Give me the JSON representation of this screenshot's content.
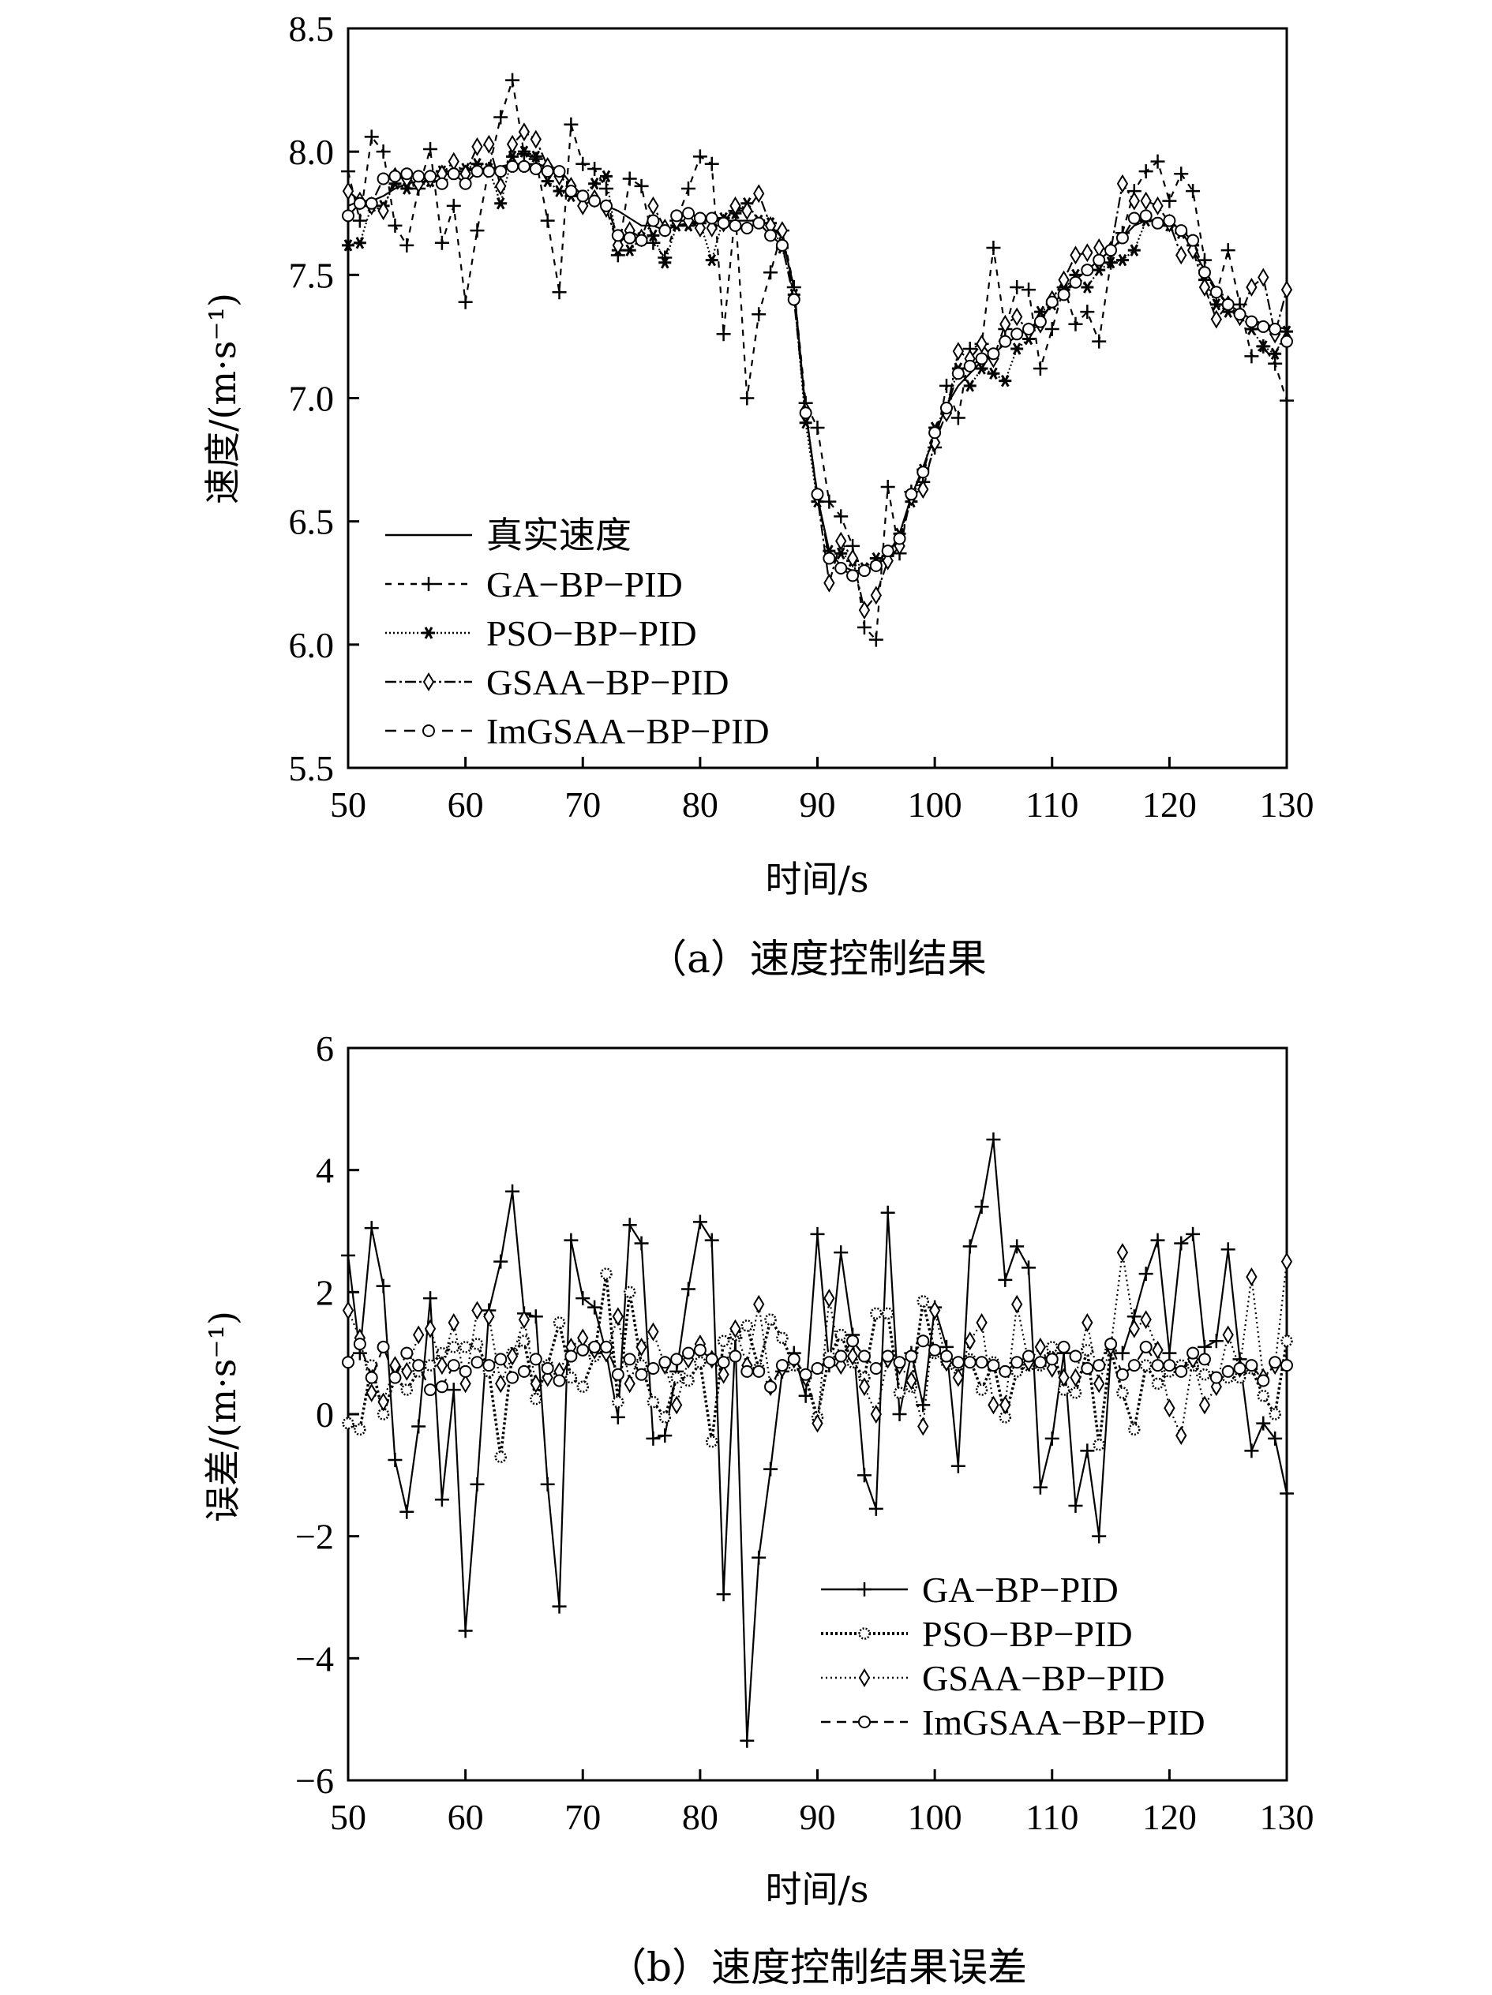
{
  "chart_data": [
    {
      "type": "line",
      "caption": "（a）速度控制结果",
      "xlabel": "时间/s",
      "ylabel": "速度/(m·s⁻¹)",
      "xlim": [
        50,
        130
      ],
      "ylim": [
        5.5,
        8.5
      ],
      "xticks": [
        "50",
        "60",
        "70",
        "80",
        "90",
        "100",
        "110",
        "120",
        "130"
      ],
      "yticks": [
        "5.5",
        "6.0",
        "6.5",
        "7.0",
        "7.5",
        "8.0",
        "8.5"
      ],
      "legend_position": "lower-left",
      "x": [
        50,
        51,
        52,
        53,
        54,
        55,
        56,
        57,
        58,
        59,
        60,
        61,
        62,
        63,
        64,
        65,
        66,
        67,
        68,
        69,
        70,
        71,
        72,
        73,
        74,
        75,
        76,
        77,
        78,
        79,
        80,
        81,
        82,
        83,
        84,
        85,
        86,
        87,
        88,
        89,
        90,
        91,
        92,
        93,
        94,
        95,
        96,
        97,
        98,
        99,
        100,
        101,
        102,
        103,
        104,
        105,
        106,
        107,
        108,
        109,
        110,
        111,
        112,
        113,
        114,
        115,
        116,
        117,
        118,
        119,
        120,
        121,
        122,
        123,
        124,
        125,
        126,
        127,
        128,
        129,
        130
      ],
      "series": [
        {
          "name": "真实速度",
          "marker": "none",
          "dash": "solid",
          "values": [
            7.78,
            7.8,
            7.8,
            7.82,
            7.85,
            7.87,
            7.88,
            7.9,
            7.9,
            7.92,
            7.92,
            7.93,
            7.93,
            7.94,
            7.95,
            7.95,
            7.95,
            7.94,
            7.93,
            7.87,
            7.82,
            7.8,
            7.78,
            7.76,
            7.73,
            7.7,
            7.7,
            7.68,
            7.7,
            7.71,
            7.72,
            7.72,
            7.72,
            7.72,
            7.72,
            7.72,
            7.7,
            7.65,
            7.45,
            6.95,
            6.6,
            6.38,
            6.32,
            6.3,
            6.3,
            6.32,
            6.36,
            6.45,
            6.6,
            6.72,
            6.85,
            6.97,
            7.05,
            7.1,
            7.15,
            7.18,
            7.22,
            7.25,
            7.28,
            7.32,
            7.38,
            7.43,
            7.48,
            7.52,
            7.56,
            7.6,
            7.65,
            7.7,
            7.72,
            7.72,
            7.72,
            7.68,
            7.6,
            7.52,
            7.44,
            7.38,
            7.35,
            7.32,
            7.3,
            7.29,
            7.28
          ]
        },
        {
          "name": "GA−BP−PID",
          "marker": "plus",
          "dash": "8,8",
          "values": [
            7.92,
            7.72,
            8.06,
            8.0,
            7.7,
            7.62,
            7.85,
            8.01,
            7.63,
            7.78,
            7.39,
            7.68,
            7.93,
            8.14,
            8.29,
            7.99,
            7.97,
            7.72,
            7.43,
            8.11,
            7.95,
            7.93,
            7.85,
            7.58,
            7.89,
            7.86,
            7.63,
            7.57,
            7.72,
            7.85,
            7.98,
            7.95,
            7.26,
            7.76,
            7.0,
            7.34,
            7.51,
            7.68,
            7.45,
            6.98,
            6.88,
            6.58,
            6.52,
            6.4,
            6.07,
            6.02,
            6.64,
            6.37,
            6.62,
            6.66,
            6.8,
            7.05,
            6.92,
            7.2,
            7.22,
            7.61,
            7.28,
            7.45,
            7.44,
            7.12,
            7.28,
            7.45,
            7.3,
            7.35,
            7.23,
            7.55,
            7.67,
            7.84,
            7.92,
            7.96,
            7.8,
            7.91,
            7.84,
            7.56,
            7.42,
            7.6,
            7.38,
            7.17,
            7.21,
            7.14,
            6.99
          ]
        },
        {
          "name": "PSO−BP−PID",
          "marker": "asterisk",
          "dash": "2,3",
          "values": [
            7.62,
            7.63,
            7.78,
            7.78,
            7.87,
            7.85,
            7.87,
            7.88,
            7.92,
            7.91,
            7.93,
            7.95,
            7.93,
            7.79,
            7.98,
            8.0,
            7.98,
            7.88,
            7.84,
            7.82,
            7.82,
            7.87,
            7.9,
            7.6,
            7.6,
            7.65,
            7.66,
            7.55,
            7.7,
            7.7,
            7.71,
            7.56,
            7.73,
            7.75,
            7.79,
            7.72,
            7.71,
            7.61,
            7.42,
            6.9,
            6.58,
            6.38,
            6.37,
            6.34,
            6.31,
            6.35,
            6.36,
            6.45,
            6.58,
            6.71,
            6.88,
            6.96,
            7.12,
            7.05,
            7.12,
            7.1,
            7.07,
            7.2,
            7.24,
            7.35,
            7.38,
            7.44,
            7.5,
            7.45,
            7.52,
            7.55,
            7.56,
            7.6,
            7.72,
            7.71,
            7.7,
            7.67,
            7.62,
            7.48,
            7.38,
            7.35,
            7.34,
            7.28,
            7.21,
            7.18,
            7.27
          ]
        },
        {
          "name": "GSAA−BP−PID",
          "marker": "diamond",
          "dash": "14,4,3,4",
          "values": [
            7.84,
            7.8,
            7.78,
            7.76,
            7.9,
            7.89,
            7.87,
            7.89,
            7.91,
            7.96,
            7.91,
            8.02,
            8.03,
            7.86,
            8.03,
            8.08,
            8.05,
            7.94,
            7.9,
            7.86,
            7.78,
            7.81,
            7.77,
            7.62,
            7.68,
            7.65,
            7.78,
            7.69,
            7.72,
            7.72,
            7.69,
            7.69,
            7.71,
            7.78,
            7.76,
            7.83,
            7.7,
            7.68,
            7.41,
            6.95,
            6.6,
            6.25,
            6.42,
            6.35,
            6.14,
            6.2,
            6.34,
            6.4,
            6.6,
            6.63,
            6.82,
            6.94,
            7.19,
            7.16,
            7.22,
            7.16,
            7.3,
            7.33,
            7.27,
            7.3,
            7.4,
            7.48,
            7.58,
            7.59,
            7.61,
            7.6,
            7.87,
            7.8,
            7.8,
            7.78,
            7.71,
            7.58,
            7.6,
            7.45,
            7.32,
            7.38,
            7.33,
            7.45,
            7.49,
            7.26,
            7.44
          ]
        },
        {
          "name": "ImGSAA−BP−PID",
          "marker": "circle",
          "dash": "14,10",
          "values": [
            7.74,
            7.79,
            7.79,
            7.89,
            7.9,
            7.91,
            7.9,
            7.9,
            7.87,
            7.91,
            7.87,
            7.92,
            7.92,
            7.92,
            7.94,
            7.94,
            7.93,
            7.92,
            7.92,
            7.84,
            7.82,
            7.8,
            7.78,
            7.66,
            7.65,
            7.64,
            7.72,
            7.68,
            7.74,
            7.75,
            7.73,
            7.73,
            7.71,
            7.7,
            7.69,
            7.71,
            7.66,
            7.62,
            7.4,
            6.94,
            6.61,
            6.35,
            6.31,
            6.28,
            6.3,
            6.32,
            6.38,
            6.43,
            6.61,
            6.7,
            6.86,
            6.96,
            7.1,
            7.13,
            7.16,
            7.18,
            7.23,
            7.26,
            7.28,
            7.31,
            7.39,
            7.42,
            7.47,
            7.52,
            7.56,
            7.6,
            7.65,
            7.73,
            7.74,
            7.71,
            7.72,
            7.68,
            7.64,
            7.51,
            7.43,
            7.38,
            7.34,
            7.31,
            7.29,
            7.28,
            7.23
          ]
        }
      ]
    },
    {
      "type": "line",
      "caption": "（b）速度控制结果误差",
      "xlabel": "时间/s",
      "ylabel": "误差/(m·s⁻¹)",
      "xlim": [
        50,
        130
      ],
      "ylim": [
        -6,
        6
      ],
      "xticks": [
        "50",
        "60",
        "70",
        "80",
        "90",
        "100",
        "110",
        "120",
        "130"
      ],
      "yticks": [
        "−6",
        "−4",
        "−2",
        "0",
        "2",
        "4",
        "6"
      ],
      "legend_position": "lower-right",
      "x": [
        50,
        51,
        52,
        53,
        54,
        55,
        56,
        57,
        58,
        59,
        60,
        61,
        62,
        63,
        64,
        65,
        66,
        67,
        68,
        69,
        70,
        71,
        72,
        73,
        74,
        75,
        76,
        77,
        78,
        79,
        80,
        81,
        82,
        83,
        84,
        85,
        86,
        87,
        88,
        89,
        90,
        91,
        92,
        93,
        94,
        95,
        96,
        97,
        98,
        99,
        100,
        101,
        102,
        103,
        104,
        105,
        106,
        107,
        108,
        109,
        110,
        111,
        112,
        113,
        114,
        115,
        116,
        117,
        118,
        119,
        120,
        121,
        122,
        123,
        124,
        125,
        126,
        127,
        128,
        129,
        130
      ],
      "series": [
        {
          "name": "GA−BP−PID",
          "marker": "plus",
          "dash": "solid",
          "values": [
            2.6,
            1.0,
            3.05,
            2.1,
            -0.75,
            -1.6,
            -0.2,
            1.9,
            -1.4,
            0.4,
            -3.55,
            -1.15,
            1.7,
            2.5,
            3.65,
            1.65,
            1.6,
            -1.15,
            -3.15,
            2.85,
            1.9,
            1.75,
            1.0,
            -0.05,
            3.1,
            2.8,
            -0.4,
            -0.35,
            0.7,
            2.05,
            3.15,
            2.85,
            -2.95,
            1.25,
            -5.35,
            -2.35,
            -0.9,
            0.7,
            1.0,
            0.3,
            2.95,
            0.8,
            2.65,
            1.3,
            -1.0,
            -1.55,
            3.3,
            0.0,
            1.0,
            0.15,
            1.75,
            1.1,
            -0.85,
            2.75,
            3.4,
            4.5,
            2.2,
            2.75,
            2.4,
            -1.2,
            -0.4,
            1.0,
            -1.5,
            -0.6,
            -2.0,
            1.0,
            1.0,
            1.6,
            2.3,
            2.85,
            1.0,
            2.8,
            2.95,
            1.1,
            1.2,
            2.7,
            0.9,
            -0.6,
            -0.15,
            -0.4,
            -1.3
          ]
        },
        {
          "name": "PSO−BP−PID",
          "marker": "dot",
          "dash": "3,3",
          "values": [
            -0.15,
            -0.25,
            0.8,
            0.0,
            0.6,
            0.4,
            0.7,
            0.8,
            1.0,
            1.1,
            1.1,
            1.15,
            0.7,
            -0.7,
            1.0,
            1.2,
            0.25,
            0.8,
            1.5,
            0.6,
            0.45,
            0.95,
            2.3,
            0.2,
            2.0,
            0.8,
            0.2,
            -0.05,
            0.6,
            0.55,
            0.85,
            -0.45,
            1.2,
            1.3,
            1.45,
            0.75,
            1.55,
            1.25,
            0.8,
            0.6,
            -0.05,
            0.95,
            1.3,
            0.85,
            0.6,
            1.65,
            1.65,
            0.35,
            0.45,
            1.85,
            1.0,
            0.85,
            0.8,
            0.9,
            0.4,
            0.85,
            -0.05,
            0.7,
            0.8,
            0.8,
            1.1,
            0.4,
            0.35,
            1.05,
            -0.5,
            1.05,
            0.35,
            -0.25,
            0.8,
            0.5,
            0.7,
            0.8,
            0.8,
            0.65,
            0.6,
            0.6,
            0.6,
            0.75,
            0.3,
            0.0,
            1.2
          ]
        },
        {
          "name": "GSAA−BP−PID",
          "marker": "diamond",
          "dash": "2,4",
          "values": [
            1.7,
            1.25,
            0.35,
            0.2,
            0.8,
            0.7,
            1.3,
            1.4,
            0.8,
            1.5,
            0.5,
            1.7,
            1.6,
            0.5,
            0.95,
            1.55,
            0.5,
            0.6,
            0.7,
            1.1,
            1.25,
            1.05,
            1.0,
            1.6,
            0.5,
            1.1,
            1.35,
            0.8,
            0.15,
            0.9,
            1.15,
            0.9,
            0.65,
            1.4,
            0.8,
            1.8,
            0.45,
            0.75,
            0.9,
            0.6,
            -0.15,
            1.9,
            0.8,
            0.95,
            0.45,
            0.0,
            0.9,
            0.8,
            0.55,
            -0.2,
            1.7,
            0.85,
            0.6,
            1.2,
            1.5,
            0.15,
            0.15,
            1.8,
            0.85,
            1.1,
            0.75,
            0.6,
            0.6,
            1.5,
            0.5,
            1.1,
            2.65,
            1.4,
            1.55,
            1.05,
            0.1,
            -0.35,
            0.9,
            0.15,
            0.45,
            1.3,
            0.75,
            2.25,
            0.6,
            0.8,
            2.5
          ]
        },
        {
          "name": "ImGSAA−BP−PID",
          "marker": "circle",
          "dash": "12,8",
          "values": [
            0.85,
            1.15,
            0.6,
            1.1,
            0.6,
            1.0,
            0.8,
            0.4,
            0.45,
            0.8,
            0.7,
            0.85,
            0.8,
            0.9,
            0.6,
            0.7,
            0.9,
            0.75,
            0.55,
            0.95,
            1.05,
            1.1,
            1.1,
            0.65,
            0.9,
            0.65,
            0.75,
            0.85,
            0.9,
            1.0,
            1.05,
            0.9,
            0.85,
            0.95,
            0.7,
            0.7,
            0.45,
            0.8,
            0.9,
            0.65,
            0.75,
            0.85,
            0.95,
            1.2,
            0.95,
            0.75,
            0.95,
            0.85,
            0.95,
            1.2,
            1.05,
            0.95,
            0.85,
            0.85,
            0.85,
            0.8,
            0.7,
            0.85,
            0.95,
            0.85,
            0.9,
            1.1,
            0.95,
            0.75,
            0.8,
            1.15,
            0.65,
            0.8,
            1.1,
            0.8,
            0.8,
            0.7,
            1.0,
            0.9,
            0.6,
            0.7,
            0.75,
            0.8,
            0.55,
            0.85,
            0.8
          ]
        }
      ]
    }
  ]
}
